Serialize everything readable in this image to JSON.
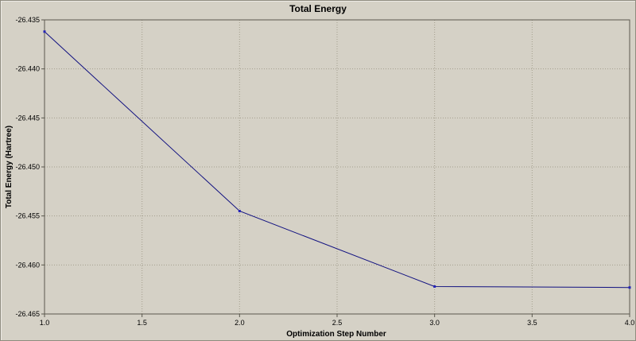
{
  "colors": {
    "background": "#d5d1c6",
    "grid": "#a49f8e",
    "axis": "#5a574d",
    "line": "#101080",
    "marker": "#2424b8",
    "text": "#000000"
  },
  "chart_data": {
    "type": "line",
    "title": "Total Energy",
    "xlabel": "Optimization Step Number",
    "ylabel": "Total Energy (Hartree)",
    "series_name": "Total Energy",
    "xlim": [
      1.0,
      4.0
    ],
    "ylim": [
      -26.465,
      -26.435
    ],
    "x": [
      1,
      2,
      3,
      4
    ],
    "values": [
      -26.4362,
      -26.4545,
      -26.4622,
      -26.4623
    ],
    "x_tick_values": [
      1.0,
      1.5,
      2.0,
      2.5,
      3.0,
      3.5,
      4.0
    ],
    "x_tick_labels": [
      "1.0",
      "1.5",
      "2.0",
      "2.5",
      "3.0",
      "3.5",
      "4.0"
    ],
    "y_tick_values": [
      -26.435,
      -26.44,
      -26.445,
      -26.45,
      -26.455,
      -26.46,
      -26.465
    ],
    "y_tick_labels": [
      "-26.435",
      "-26.440",
      "-26.445",
      "-26.450",
      "-26.455",
      "-26.460",
      "-26.465"
    ],
    "grid": true,
    "legend": "none"
  }
}
